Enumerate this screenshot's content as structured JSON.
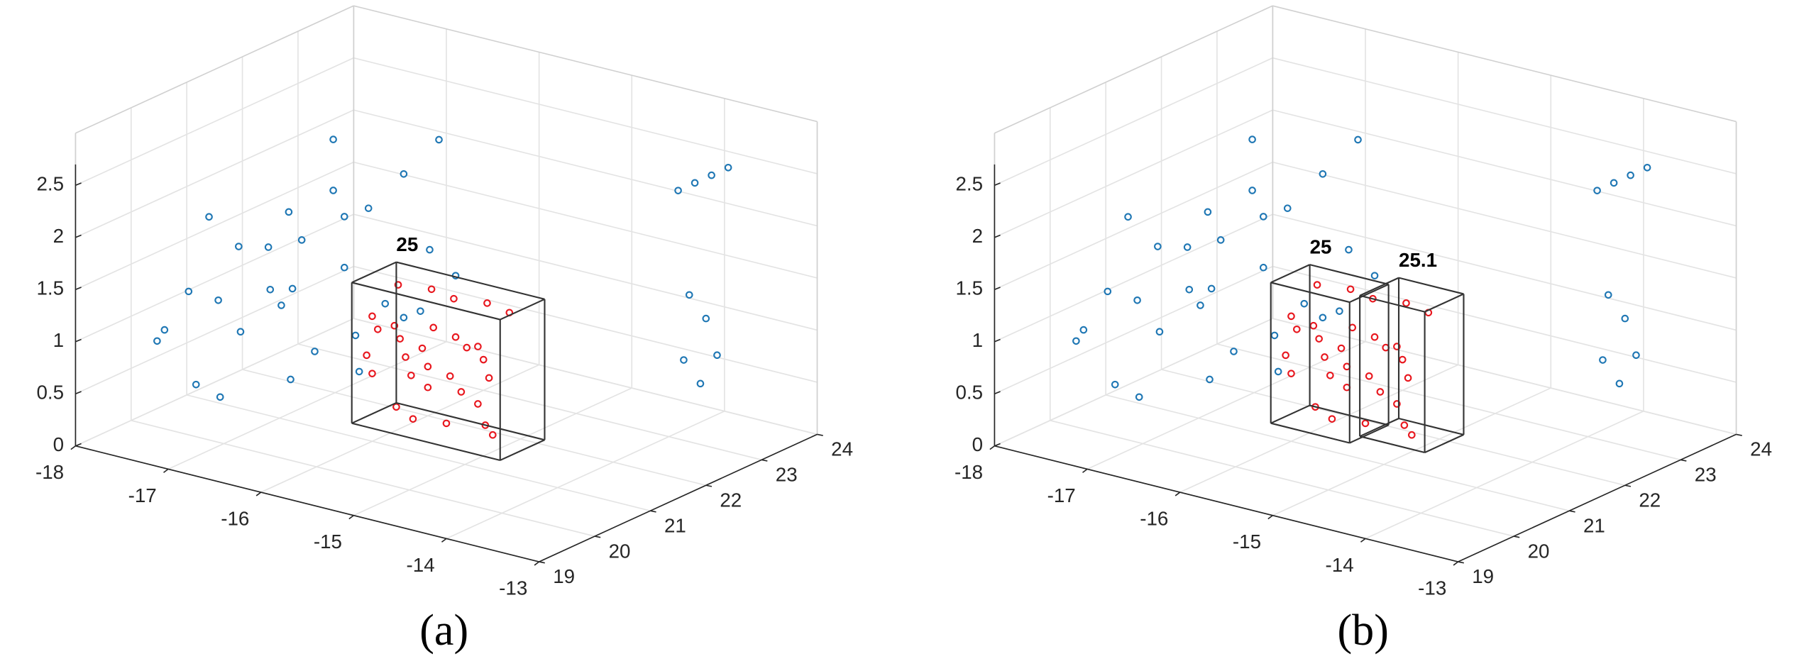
{
  "chart_data": [
    {
      "type": "scatter3d",
      "caption": "(a)",
      "xlim": [
        -18,
        -13
      ],
      "ylim": [
        19,
        24
      ],
      "zlim": [
        0,
        3
      ],
      "xticks": [
        -18,
        -17,
        -16,
        -15,
        -14,
        -13
      ],
      "yticks": [
        19,
        20,
        21,
        22,
        23,
        24
      ],
      "zticks": [
        0,
        0.5,
        1,
        1.5,
        2,
        2.5
      ],
      "grid": true,
      "series": [
        {
          "color": "#1f77b4",
          "x": [
            -17.6,
            -17.5,
            -17.3,
            -17.2,
            -17.0,
            -16.9,
            -16.8,
            -16.6,
            -16.5,
            -16.4,
            -16.3,
            -16.2,
            -16.1,
            -17.4,
            -17.1,
            -16.7,
            -16.5,
            -16.3,
            -17.0,
            -16.8,
            -16.6,
            -16.4,
            -17.7,
            -17.3,
            -16.9,
            -16.2,
            -16.0,
            -15.9,
            -15.6,
            -15.5,
            -15.4,
            -13.0,
            -13.0,
            -13.0,
            -13.0,
            -13.0,
            -13.0,
            -13.0,
            -13.0,
            -13.0
          ],
          "y": [
            19.8,
            20.2,
            20.0,
            20.6,
            20.3,
            21.0,
            20.5,
            21.3,
            20.8,
            21.6,
            21.0,
            21.9,
            21.4,
            19.6,
            20.1,
            20.9,
            20.4,
            21.2,
            19.9,
            20.7,
            21.5,
            20.2,
            20.9,
            21.3,
            21.8,
            21.1,
            22.2,
            21.7,
            20.9,
            21.2,
            21.5,
            21.5,
            21.8,
            22.1,
            22.4,
            21.7,
            22.0,
            21.6,
            21.9,
            22.2
          ],
          "z": [
            0.9,
            1.3,
            0.5,
            1.7,
            1.0,
            2.0,
            1.4,
            2.2,
            0.8,
            2.0,
            1.6,
            2.3,
            1.2,
            1.1,
            0.4,
            1.8,
            1.5,
            0.9,
            1.4,
            1.2,
            1.9,
            0.7,
            1.8,
            1.5,
            2.5,
            0.6,
            2.6,
            1.1,
            1.3,
            1.9,
            1.6,
            2.95,
            2.95,
            2.95,
            2.95,
            1.9,
            1.6,
            1.3,
            1.0,
            1.2
          ]
        },
        {
          "color": "#e8171e",
          "x": [
            -16.0,
            -15.7,
            -15.4,
            -15.1,
            -14.8,
            -16.0,
            -15.7,
            -15.4,
            -15.1,
            -14.8,
            -16.0,
            -15.7,
            -15.4,
            -15.1,
            -14.8,
            -16.0,
            -15.7,
            -15.4,
            -15.1,
            -14.8,
            -15.9,
            -15.6,
            -15.3,
            -15.0,
            -14.7,
            -15.8,
            -15.5,
            -15.2,
            -14.9,
            -14.7
          ],
          "y": [
            21.0,
            20.9,
            21.1,
            21.0,
            20.9,
            21.1,
            21.0,
            20.9,
            21.2,
            21.0,
            20.9,
            21.1,
            21.0,
            20.9,
            21.1,
            21.0,
            21.2,
            21.0,
            21.1,
            20.9,
            21.3,
            21.4,
            21.3,
            21.4,
            21.3,
            21.1,
            20.9,
            21.0,
            21.2,
            21.0
          ],
          "z": [
            1.2,
            1.2,
            1.2,
            1.2,
            1.2,
            1.05,
            1.05,
            1.05,
            1.05,
            1.05,
            0.85,
            0.85,
            0.85,
            0.85,
            0.85,
            0.65,
            0.65,
            0.65,
            0.65,
            0.65,
            1.45,
            1.45,
            1.45,
            1.45,
            1.45,
            0.35,
            0.35,
            0.35,
            0.35,
            0.35
          ]
        }
      ],
      "boxes": [
        {
          "label": "25",
          "x": [
            -16.1,
            -14.5
          ],
          "y": [
            20.8,
            21.6
          ],
          "z": [
            0.2,
            1.55
          ]
        }
      ]
    },
    {
      "type": "scatter3d",
      "caption": "(b)",
      "xlim": [
        -18,
        -13
      ],
      "ylim": [
        19,
        24
      ],
      "zlim": [
        0,
        3
      ],
      "xticks": [
        -18,
        -17,
        -16,
        -15,
        -14,
        -13
      ],
      "yticks": [
        19,
        20,
        21,
        22,
        23,
        24
      ],
      "zticks": [
        0,
        0.5,
        1,
        1.5,
        2,
        2.5
      ],
      "grid": true,
      "series": [
        {
          "color": "#1f77b4",
          "x": [
            -17.6,
            -17.5,
            -17.3,
            -17.2,
            -17.0,
            -16.9,
            -16.8,
            -16.6,
            -16.5,
            -16.4,
            -16.3,
            -16.2,
            -16.1,
            -17.4,
            -17.1,
            -16.7,
            -16.5,
            -16.3,
            -17.0,
            -16.8,
            -16.6,
            -16.4,
            -17.7,
            -17.3,
            -16.9,
            -16.2,
            -16.0,
            -15.9,
            -15.6,
            -15.5,
            -15.4,
            -13.0,
            -13.0,
            -13.0,
            -13.0,
            -13.0,
            -13.0,
            -13.0,
            -13.0,
            -13.0
          ],
          "y": [
            19.8,
            20.2,
            20.0,
            20.6,
            20.3,
            21.0,
            20.5,
            21.3,
            20.8,
            21.6,
            21.0,
            21.9,
            21.4,
            19.6,
            20.1,
            20.9,
            20.4,
            21.2,
            19.9,
            20.7,
            21.5,
            20.2,
            20.9,
            21.3,
            21.8,
            21.1,
            22.2,
            21.7,
            20.9,
            21.2,
            21.5,
            21.5,
            21.8,
            22.1,
            22.4,
            21.7,
            22.0,
            21.6,
            21.9,
            22.2
          ],
          "z": [
            0.9,
            1.3,
            0.5,
            1.7,
            1.0,
            2.0,
            1.4,
            2.2,
            0.8,
            2.0,
            1.6,
            2.3,
            1.2,
            1.1,
            0.4,
            1.8,
            1.5,
            0.9,
            1.4,
            1.2,
            1.9,
            0.7,
            1.8,
            1.5,
            2.5,
            0.6,
            2.6,
            1.1,
            1.3,
            1.9,
            1.6,
            2.95,
            2.95,
            2.95,
            2.95,
            1.9,
            1.6,
            1.3,
            1.0,
            1.2
          ]
        },
        {
          "color": "#e8171e",
          "x": [
            -16.0,
            -15.7,
            -15.4,
            -15.1,
            -14.8,
            -16.0,
            -15.7,
            -15.4,
            -15.1,
            -14.8,
            -16.0,
            -15.7,
            -15.4,
            -15.1,
            -14.8,
            -16.0,
            -15.7,
            -15.4,
            -15.1,
            -14.8,
            -15.9,
            -15.6,
            -15.3,
            -15.0,
            -14.7,
            -15.8,
            -15.5,
            -15.2,
            -14.9,
            -14.7
          ],
          "y": [
            21.0,
            20.9,
            21.1,
            21.0,
            20.9,
            21.1,
            21.0,
            20.9,
            21.2,
            21.0,
            20.9,
            21.1,
            21.0,
            20.9,
            21.1,
            21.0,
            21.2,
            21.0,
            21.1,
            20.9,
            21.3,
            21.4,
            21.3,
            21.4,
            21.3,
            21.1,
            20.9,
            21.0,
            21.2,
            21.0
          ],
          "z": [
            1.2,
            1.2,
            1.2,
            1.2,
            1.2,
            1.05,
            1.05,
            1.05,
            1.05,
            1.05,
            0.85,
            0.85,
            0.85,
            0.85,
            0.85,
            0.65,
            0.65,
            0.65,
            0.65,
            0.65,
            1.45,
            1.45,
            1.45,
            1.45,
            1.45,
            0.35,
            0.35,
            0.35,
            0.35,
            0.35
          ]
        }
      ],
      "boxes": [
        {
          "label": "25",
          "x": [
            -16.1,
            -15.25
          ],
          "y": [
            20.8,
            21.5
          ],
          "z": [
            0.2,
            1.55
          ]
        },
        {
          "label": "25.1",
          "x": [
            -15.2,
            -14.5
          ],
          "y": [
            20.9,
            21.6
          ],
          "z": [
            0.25,
            1.6
          ]
        }
      ]
    }
  ]
}
